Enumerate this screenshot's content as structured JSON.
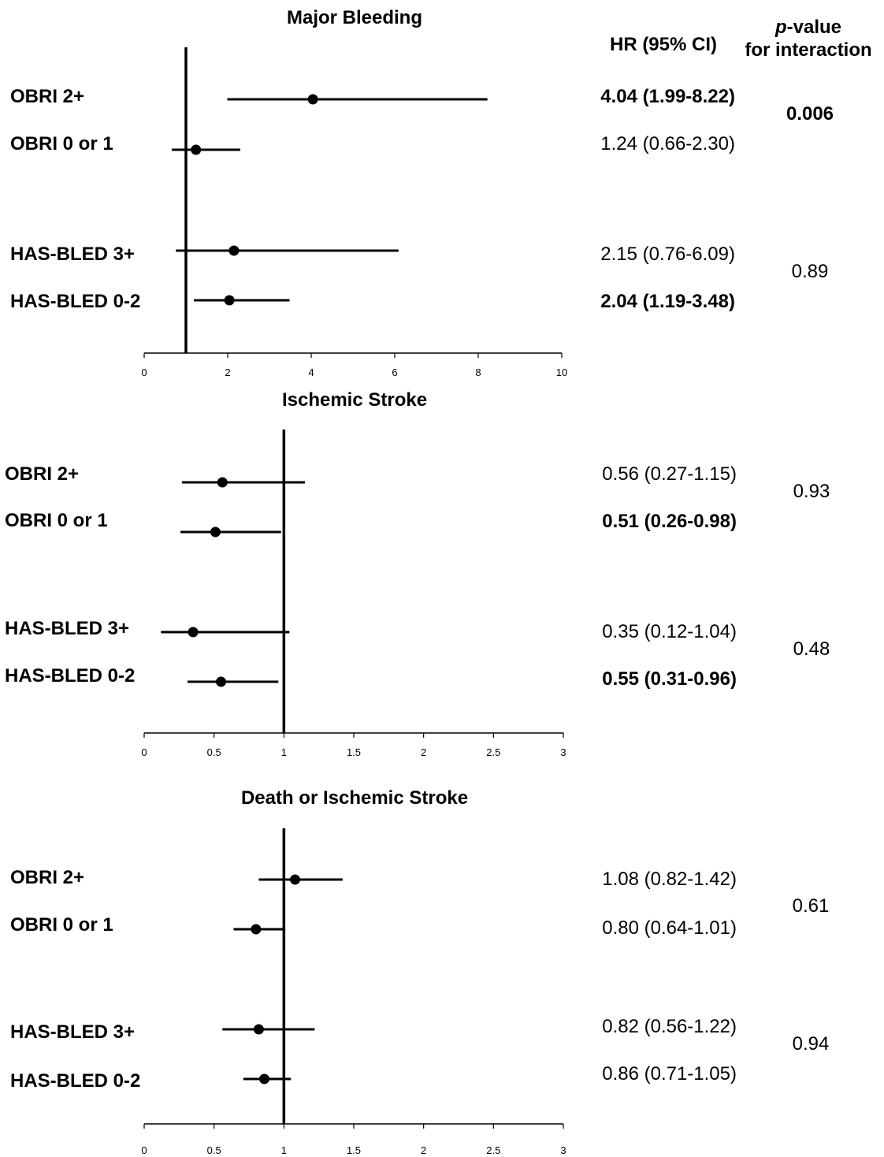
{
  "header": {
    "hr_label": "HR (95% CI)",
    "p_label_italic": "p",
    "p_label_rest": "-value",
    "p_label_line2": "for interaction"
  },
  "chart_data": [
    {
      "type": "forest",
      "title": "Major Bleeding",
      "xlim": [
        0,
        10
      ],
      "xticks": [
        "0",
        "2",
        "4",
        "6",
        "8",
        "10"
      ],
      "reference_line": 1,
      "rows": [
        {
          "label": "OBRI 2+",
          "hr": 4.04,
          "lo": 1.99,
          "hi": 8.22,
          "ci_text": "4.04 (1.99-8.22)",
          "bold": true
        },
        {
          "label": "OBRI 0 or 1",
          "hr": 1.24,
          "lo": 0.66,
          "hi": 2.3,
          "ci_text": "1.24 (0.66-2.30)",
          "bold": false
        },
        {
          "label": "HAS-BLED 3+",
          "hr": 2.15,
          "lo": 0.76,
          "hi": 6.09,
          "ci_text": "2.15 (0.76-6.09)",
          "bold": false
        },
        {
          "label": "HAS-BLED 0-2",
          "hr": 2.04,
          "lo": 1.19,
          "hi": 3.48,
          "ci_text": "2.04 (1.19-3.48)",
          "bold": true
        }
      ],
      "p_values": [
        {
          "text": "0.006",
          "bold": true
        },
        {
          "text": "0.89",
          "bold": false
        }
      ]
    },
    {
      "type": "forest",
      "title": "Ischemic Stroke",
      "xlim": [
        0,
        3
      ],
      "xticks": [
        "0",
        "0.5",
        "1",
        "1.5",
        "2",
        "2.5",
        "3"
      ],
      "reference_line": 1,
      "rows": [
        {
          "label": "OBRI 2+",
          "hr": 0.56,
          "lo": 0.27,
          "hi": 1.15,
          "ci_text": "0.56 (0.27-1.15)",
          "bold": false
        },
        {
          "label": "OBRI 0 or 1",
          "hr": 0.51,
          "lo": 0.26,
          "hi": 0.98,
          "ci_text": "0.51 (0.26-0.98)",
          "bold": true
        },
        {
          "label": "HAS-BLED 3+",
          "hr": 0.35,
          "lo": 0.12,
          "hi": 1.04,
          "ci_text": "0.35 (0.12-1.04)",
          "bold": false
        },
        {
          "label": "HAS-BLED 0-2",
          "hr": 0.55,
          "lo": 0.31,
          "hi": 0.96,
          "ci_text": "0.55 (0.31-0.96)",
          "bold": true
        }
      ],
      "p_values": [
        {
          "text": "0.93",
          "bold": false
        },
        {
          "text": "0.48",
          "bold": false
        }
      ]
    },
    {
      "type": "forest",
      "title": "Death or Ischemic Stroke",
      "xlim": [
        0,
        3
      ],
      "xticks": [
        "0",
        "0.5",
        "1",
        "1.5",
        "2",
        "2.5",
        "3"
      ],
      "reference_line": 1,
      "rows": [
        {
          "label": "OBRI 2+",
          "hr": 1.08,
          "lo": 0.82,
          "hi": 1.42,
          "ci_text": "1.08 (0.82-1.42)",
          "bold": false
        },
        {
          "label": "OBRI 0 or 1",
          "hr": 0.8,
          "lo": 0.64,
          "hi": 1.01,
          "ci_text": "0.80 (0.64-1.01)",
          "bold": false
        },
        {
          "label": "HAS-BLED 3+",
          "hr": 0.82,
          "lo": 0.56,
          "hi": 1.22,
          "ci_text": "0.82 (0.56-1.22)",
          "bold": false
        },
        {
          "label": "HAS-BLED 0-2",
          "hr": 0.86,
          "lo": 0.71,
          "hi": 1.05,
          "ci_text": "0.86 (0.71-1.05)",
          "bold": false
        }
      ],
      "p_values": [
        {
          "text": "0.61",
          "bold": false
        },
        {
          "text": "0.94",
          "bold": false
        }
      ]
    }
  ]
}
